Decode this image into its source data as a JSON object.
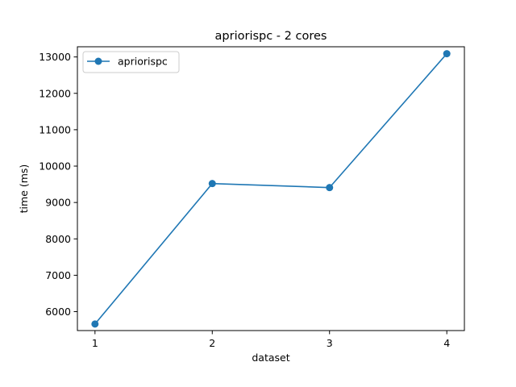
{
  "chart_data": {
    "type": "line",
    "title": "apriorispc - 2 cores",
    "xlabel": "dataset",
    "ylabel": "time (ms)",
    "x": [
      1,
      2,
      3,
      4
    ],
    "xticks": [
      "1",
      "2",
      "3",
      "4"
    ],
    "yticks": [
      6000,
      7000,
      8000,
      9000,
      10000,
      11000,
      12000,
      13000
    ],
    "xlim": [
      0.85,
      4.15
    ],
    "ylim": [
      5480,
      13280
    ],
    "grid": false,
    "legend_position": "upper left",
    "series": [
      {
        "name": "apriorispc",
        "color": "#1f77b4",
        "marker": "circle",
        "values": [
          5660,
          9520,
          9410,
          13090
        ]
      }
    ]
  }
}
